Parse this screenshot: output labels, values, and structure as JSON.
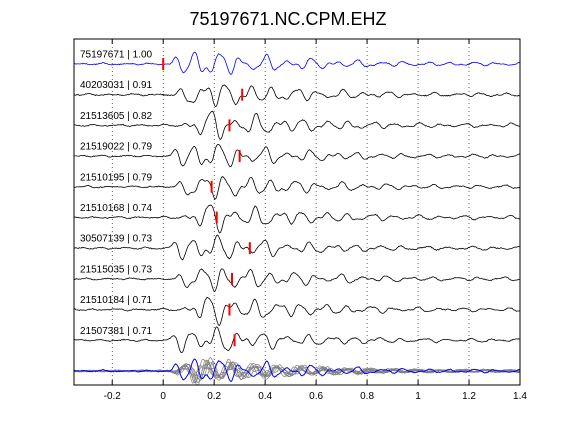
{
  "chart_data": {
    "type": "line",
    "title": "75197671.NC.CPM.EHZ",
    "xlabel": "",
    "ylabel": "",
    "xlim": [
      -0.35,
      1.4
    ],
    "xticks": [
      -0.2,
      0,
      0.2,
      0.4,
      0.6,
      0.8,
      1,
      1.2,
      1.4
    ],
    "xtick_labels": [
      "-0.2",
      "0",
      "0.2",
      "0.4",
      "0.6",
      "0.8",
      "1",
      "1.2",
      "1.4"
    ],
    "grid": true,
    "reference_color": "#0000ff",
    "trace_color": "#000000",
    "pick_color": "#ff0000",
    "stack_color": "#808080",
    "traces": [
      {
        "label": "75197671 | 1.00",
        "pick": 0.0,
        "reference": true
      },
      {
        "label": "40203031 | 0.91",
        "pick": 0.31
      },
      {
        "label": "21513605 | 0.82",
        "pick": 0.26
      },
      {
        "label": "21519022 | 0.79",
        "pick": 0.3
      },
      {
        "label": "21510195 | 0.79",
        "pick": 0.19
      },
      {
        "label": "21510168 | 0.74",
        "pick": 0.21
      },
      {
        "label": "30507139 | 0.73",
        "pick": 0.34
      },
      {
        "label": "21515035 | 0.73",
        "pick": 0.27
      },
      {
        "label": "21510184 | 0.71",
        "pick": 0.26
      },
      {
        "label": "21507381 | 0.71",
        "pick": 0.28
      }
    ],
    "stack_row": {
      "label": ""
    }
  }
}
